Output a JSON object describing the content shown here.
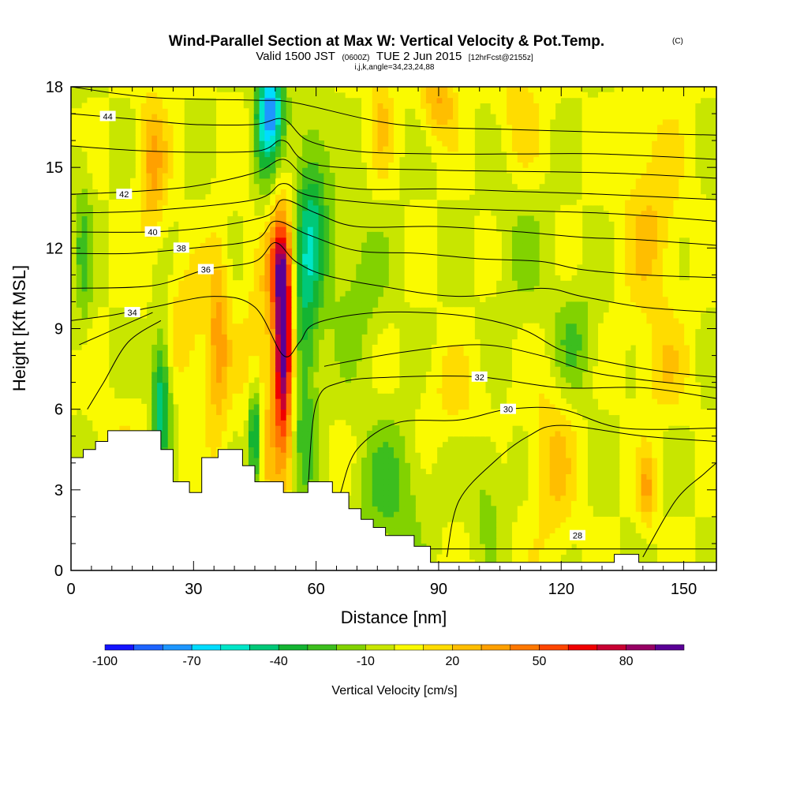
{
  "chart_data": {
    "type": "heatmap",
    "title": "Wind-Parallel Section at Max W: Vertical Velocity & Pot.Temp.",
    "title_mark": "(C)",
    "subtitle_parts": [
      "Valid 1500 JST",
      "(0600Z)",
      "TUE 2 Jun 2015",
      "[12hrFcst@2155z]"
    ],
    "subtitle2": "i,j,k,angle=34,23,24,88",
    "xlabel": "Distance [nm]",
    "ylabel": "Height [Kft MSL]",
    "xlim": [
      0,
      158
    ],
    "ylim": [
      0,
      18
    ],
    "x_ticks": [
      0,
      30,
      60,
      90,
      120,
      150
    ],
    "y_ticks": [
      0,
      3,
      6,
      9,
      12,
      15,
      18
    ],
    "grid": false,
    "colorbar": {
      "title": "Vertical Velocity [cm/s]",
      "range": [
        -100,
        100
      ],
      "tick_values": [
        -100,
        -70,
        -40,
        -10,
        20,
        50,
        80
      ],
      "tick_labels": [
        "-100",
        "-70",
        "-40",
        "-10",
        "20",
        "50",
        "80"
      ],
      "colors": [
        "#1414ff",
        "#1e64ff",
        "#1e96ff",
        "#00dcff",
        "#00e6c8",
        "#00c878",
        "#14b432",
        "#3cbe1e",
        "#82d200",
        "#c8e600",
        "#fafa00",
        "#ffdc00",
        "#ffbe00",
        "#ffa000",
        "#ff7800",
        "#ff4600",
        "#f00000",
        "#c80032",
        "#960064",
        "#5a0096"
      ]
    },
    "background_color": "#c8e600",
    "terrain": {
      "color": "#ffffff",
      "profile": [
        [
          0,
          4.2
        ],
        [
          3,
          4.2
        ],
        [
          3,
          4.5
        ],
        [
          6,
          4.5
        ],
        [
          6,
          4.8
        ],
        [
          9,
          4.8
        ],
        [
          9,
          5.2
        ],
        [
          22,
          5.2
        ],
        [
          22,
          4.5
        ],
        [
          25,
          4.5
        ],
        [
          25,
          3.3
        ],
        [
          29,
          3.3
        ],
        [
          29,
          2.9
        ],
        [
          32,
          2.9
        ],
        [
          32,
          4.2
        ],
        [
          36,
          4.2
        ],
        [
          36,
          4.5
        ],
        [
          42,
          4.5
        ],
        [
          42,
          3.9
        ],
        [
          45,
          3.9
        ],
        [
          45,
          3.3
        ],
        [
          52,
          3.3
        ],
        [
          52,
          2.9
        ],
        [
          58,
          2.9
        ],
        [
          58,
          3.3
        ],
        [
          64,
          3.3
        ],
        [
          64,
          2.9
        ],
        [
          68,
          2.9
        ],
        [
          68,
          2.3
        ],
        [
          71,
          2.3
        ],
        [
          71,
          1.9
        ],
        [
          74,
          1.9
        ],
        [
          74,
          1.6
        ],
        [
          77,
          1.6
        ],
        [
          77,
          1.3
        ],
        [
          84,
          1.3
        ],
        [
          84,
          0.9
        ],
        [
          88,
          0.9
        ],
        [
          88,
          0.3
        ],
        [
          133,
          0.3
        ],
        [
          133,
          0.6
        ],
        [
          139,
          0.6
        ],
        [
          139,
          0.3
        ],
        [
          158,
          0.3
        ]
      ]
    },
    "velocity_features": [
      {
        "x": 52,
        "y": 8.5,
        "sx": 1.6,
        "sy": 2.6,
        "w": 95
      },
      {
        "x": 51,
        "y": 11.5,
        "sx": 1.8,
        "sy": 1.2,
        "w": 35
      },
      {
        "x": 48,
        "y": 8.0,
        "sx": 4.0,
        "sy": 5.0,
        "w": 20
      },
      {
        "x": 57,
        "y": 9.0,
        "sx": 2.2,
        "sy": 4.5,
        "w": -35
      },
      {
        "x": 60,
        "y": 13.0,
        "sx": 2.5,
        "sy": 2.5,
        "w": -30
      },
      {
        "x": 45,
        "y": 5.0,
        "sx": 1.1,
        "sy": 1.4,
        "w": -55
      },
      {
        "x": 22,
        "y": 6.5,
        "sx": 1.6,
        "sy": 1.8,
        "w": -50
      },
      {
        "x": 36,
        "y": 8.5,
        "sx": 2.0,
        "sy": 2.5,
        "w": 35
      },
      {
        "x": 49,
        "y": 17.2,
        "sx": 2.2,
        "sy": 1.2,
        "w": -70
      },
      {
        "x": 47,
        "y": 15.5,
        "sx": 2.0,
        "sy": 2.0,
        "w": -25
      },
      {
        "x": 3,
        "y": 12.0,
        "sx": 1.5,
        "sy": 2.5,
        "w": -20
      },
      {
        "x": 20,
        "y": 15.0,
        "sx": 2.5,
        "sy": 2.0,
        "w": 30
      },
      {
        "x": 28,
        "y": 9.0,
        "sx": 3.5,
        "sy": 1.5,
        "w": 20
      },
      {
        "x": 70,
        "y": 10.5,
        "sx": 5.0,
        "sy": 2.0,
        "w": -15
      },
      {
        "x": 78,
        "y": 3.0,
        "sx": 6.0,
        "sy": 1.8,
        "w": -22
      },
      {
        "x": 102,
        "y": 3.0,
        "sx": 3.0,
        "sy": 1.6,
        "w": -15
      },
      {
        "x": 118,
        "y": 4.0,
        "sx": 4.0,
        "sy": 2.5,
        "w": 20
      },
      {
        "x": 123,
        "y": 8.5,
        "sx": 4.0,
        "sy": 1.5,
        "w": -20
      },
      {
        "x": 110,
        "y": 17.0,
        "sx": 4.0,
        "sy": 1.5,
        "w": 15
      },
      {
        "x": 142,
        "y": 13.0,
        "sx": 5.0,
        "sy": 3.0,
        "w": 20
      },
      {
        "x": 110,
        "y": 12.0,
        "sx": 5.0,
        "sy": 2.0,
        "w": -10
      },
      {
        "x": 90,
        "y": 17.5,
        "sx": 3.0,
        "sy": 1.0,
        "w": 30
      },
      {
        "x": 76,
        "y": 17.0,
        "sx": 2.0,
        "sy": 1.5,
        "w": 20
      },
      {
        "x": 141,
        "y": 3.0,
        "sx": 1.5,
        "sy": 1.0,
        "w": 30
      },
      {
        "x": 145,
        "y": 7.5,
        "sx": 4.0,
        "sy": 1.2,
        "w": 15
      },
      {
        "x": 12,
        "y": 4.0,
        "sx": 5.0,
        "sy": 1.5,
        "w": 10
      },
      {
        "x": 94,
        "y": 6.5,
        "sx": 6.0,
        "sy": 1.2,
        "w": 12
      }
    ],
    "isentropes": [
      {
        "value": 28,
        "label_at": {
          "x": 124,
          "y": 1.3
        },
        "points": [
          [
            88,
            0.8
          ],
          [
            120,
            0.8
          ],
          [
            158,
            0.8
          ]
        ]
      },
      {
        "value": 30,
        "label_at": {
          "x": 107,
          "y": 6.0
        },
        "points": [
          [
            66,
            2.9
          ],
          [
            70,
            4.5
          ],
          [
            80,
            5.5
          ],
          [
            95,
            5.6
          ],
          [
            107,
            6.0
          ],
          [
            120,
            6.0
          ],
          [
            135,
            5.3
          ],
          [
            158,
            5.3
          ]
        ]
      },
      {
        "value": 32,
        "label_at": {
          "x": 100,
          "y": 7.2
        },
        "points": [
          [
            58,
            3.0
          ],
          [
            60,
            6.2
          ],
          [
            66,
            7.0
          ],
          [
            80,
            7.2
          ],
          [
            100,
            7.2
          ],
          [
            120,
            6.8
          ],
          [
            140,
            6.8
          ],
          [
            158,
            6.4
          ]
        ]
      },
      {
        "value": 34,
        "label_at": {
          "x": 15,
          "y": 9.6
        },
        "points": [
          [
            0,
            9.3
          ],
          [
            10,
            9.5
          ],
          [
            20,
            9.8
          ],
          [
            35,
            10.2
          ],
          [
            45,
            9.8
          ],
          [
            52,
            8.0
          ],
          [
            56,
            8.5
          ],
          [
            60,
            9.2
          ],
          [
            75,
            9.6
          ],
          [
            95,
            9.5
          ],
          [
            110,
            9.0
          ],
          [
            120,
            8.2
          ],
          [
            130,
            7.8
          ],
          [
            145,
            7.4
          ],
          [
            158,
            7.2
          ]
        ]
      },
      {
        "value": 36,
        "label_at": {
          "x": 33,
          "y": 11.2
        },
        "points": [
          [
            0,
            10.5
          ],
          [
            20,
            10.6
          ],
          [
            33,
            11.2
          ],
          [
            45,
            11.5
          ],
          [
            50,
            12.2
          ],
          [
            55,
            11.5
          ],
          [
            62,
            11.0
          ],
          [
            75,
            10.6
          ],
          [
            95,
            10.2
          ],
          [
            115,
            10.5
          ],
          [
            125,
            10.2
          ],
          [
            140,
            9.8
          ],
          [
            158,
            9.6
          ]
        ]
      },
      {
        "value": 38,
        "label_at": {
          "x": 27,
          "y": 12.0
        },
        "points": [
          [
            0,
            11.8
          ],
          [
            15,
            11.8
          ],
          [
            30,
            12.0
          ],
          [
            45,
            12.3
          ],
          [
            50,
            13.0
          ],
          [
            58,
            12.5
          ],
          [
            70,
            11.9
          ],
          [
            85,
            11.8
          ],
          [
            100,
            11.6
          ],
          [
            115,
            11.5
          ],
          [
            125,
            11.2
          ],
          [
            140,
            11.0
          ],
          [
            158,
            10.9
          ]
        ]
      },
      {
        "value": 40,
        "label_at": {
          "x": 20,
          "y": 12.6
        },
        "points": [
          [
            0,
            12.6
          ],
          [
            20,
            12.6
          ],
          [
            35,
            12.8
          ],
          [
            48,
            13.2
          ],
          [
            52,
            13.8
          ],
          [
            60,
            13.3
          ],
          [
            70,
            12.8
          ],
          [
            90,
            12.8
          ],
          [
            110,
            12.6
          ],
          [
            125,
            12.4
          ],
          [
            140,
            12.3
          ],
          [
            158,
            12.1
          ]
        ]
      },
      {
        "value": 42,
        "label_at": {
          "x": 13,
          "y": 14.0
        },
        "points": [
          [
            0,
            14.0
          ],
          [
            15,
            14.1
          ],
          [
            30,
            14.3
          ],
          [
            45,
            14.8
          ],
          [
            52,
            15.3
          ],
          [
            58,
            14.6
          ],
          [
            70,
            14.2
          ],
          [
            90,
            14.2
          ],
          [
            110,
            14.1
          ],
          [
            130,
            14.0
          ],
          [
            158,
            13.8
          ]
        ]
      },
      {
        "value": 44,
        "label_at": {
          "x": 9,
          "y": 16.9
        },
        "points": [
          [
            0,
            17.0
          ],
          [
            15,
            16.8
          ],
          [
            30,
            16.6
          ],
          [
            45,
            16.6
          ],
          [
            52,
            16.8
          ],
          [
            58,
            16.0
          ],
          [
            70,
            15.6
          ],
          [
            90,
            15.5
          ],
          [
            110,
            15.5
          ],
          [
            130,
            15.5
          ],
          [
            158,
            15.3
          ]
        ]
      }
    ],
    "extra_isolines": [
      [
        [
          0,
          15.8
        ],
        [
          20,
          15.6
        ],
        [
          45,
          15.6
        ],
        [
          52,
          16.0
        ],
        [
          60,
          15.1
        ],
        [
          90,
          14.9
        ],
        [
          130,
          14.8
        ],
        [
          158,
          14.6
        ]
      ],
      [
        [
          0,
          18.0
        ],
        [
          20,
          17.6
        ],
        [
          45,
          17.5
        ],
        [
          55,
          17.4
        ],
        [
          80,
          16.6
        ],
        [
          110,
          16.4
        ],
        [
          158,
          16.2
        ]
      ],
      [
        [
          0,
          13.3
        ],
        [
          20,
          13.4
        ],
        [
          45,
          13.8
        ],
        [
          52,
          14.4
        ],
        [
          60,
          13.9
        ],
        [
          90,
          13.5
        ],
        [
          130,
          13.3
        ],
        [
          158,
          13.0
        ]
      ],
      [
        [
          2,
          8.4
        ],
        [
          14,
          9.2
        ],
        [
          20,
          9.6
        ]
      ],
      [
        [
          4,
          6.0
        ],
        [
          8,
          7.0
        ],
        [
          14,
          8.5
        ],
        [
          22,
          9.3
        ]
      ],
      [
        [
          62,
          7.6
        ],
        [
          80,
          8.1
        ],
        [
          100,
          8.4
        ],
        [
          115,
          8.0
        ],
        [
          130,
          7.3
        ],
        [
          158,
          6.8
        ]
      ],
      [
        [
          92,
          0.5
        ],
        [
          95,
          2.6
        ],
        [
          104,
          4.1
        ],
        [
          112,
          5.0
        ],
        [
          120,
          5.4
        ],
        [
          140,
          5.0
        ],
        [
          158,
          4.8
        ]
      ],
      [
        [
          140,
          0.5
        ],
        [
          148,
          2.6
        ],
        [
          155,
          3.6
        ],
        [
          158,
          4.0
        ]
      ]
    ]
  }
}
